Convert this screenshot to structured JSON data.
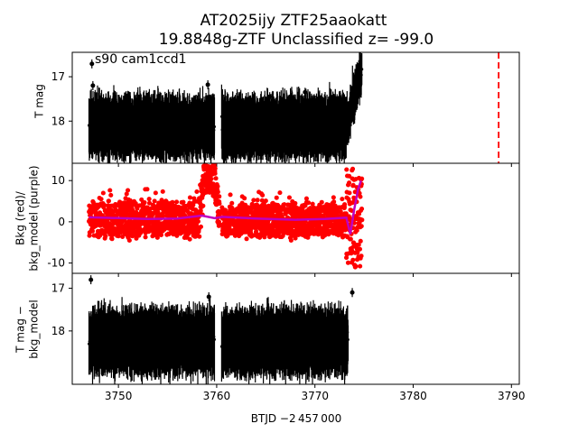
{
  "chart_data": {
    "type": "scatter",
    "title_line1": "AT2025ijy  ZTF25aaokatt",
    "title_line2": "19.8848g-ZTF Unclassified z= -99.0",
    "annotation": "s90 cam1ccd1",
    "xlabel": "BTJD −2 457 000",
    "xlim": [
      3745.3,
      3790.8
    ],
    "xticks": [
      3750,
      3760,
      3770,
      3780,
      3790
    ],
    "marker_line_x": 3788.7,
    "colors": {
      "data": "#000000",
      "bkg": "#ff0000",
      "model": "#bf00bf",
      "marker_line": "#ff0000"
    },
    "panels": [
      {
        "id": "top",
        "ylabel": [
          "T mag"
        ],
        "ylim": [
          18.95,
          16.45
        ],
        "yticks": [
          17,
          18
        ],
        "gaps": [
          [
            3759.8,
            3760.5
          ]
        ],
        "segments": [
          {
            "x": [
              3747.0,
              3759.8
            ],
            "lo": 17.45,
            "hi": 18.8,
            "noise": 0.28,
            "bumps": []
          },
          {
            "x": [
              3760.5,
              3773.2
            ],
            "lo": 17.45,
            "hi": 18.8,
            "noise": 0.28,
            "bumps": []
          },
          {
            "x": [
              3773.2,
              3774.8
            ],
            "lo": 16.6,
            "hi": 18.4,
            "noise": 0.3,
            "rise": [
              18.1,
              16.8
            ]
          }
        ],
        "outliers": [
          [
            3747.3,
            16.71
          ],
          [
            3747.4,
            17.2
          ],
          [
            3759.1,
            17.18
          ],
          [
            3769.0,
            17.35
          ],
          [
            3765.4,
            17.45
          ]
        ]
      },
      {
        "id": "middle",
        "ylabel": [
          "Bkg (red)/",
          "bkg_model (purple)"
        ],
        "ylim": [
          -12.5,
          14.2
        ],
        "yticks": [
          -10,
          0,
          10
        ],
        "bkg_segments": [
          {
            "x": [
              3747.0,
              3758.2
            ],
            "center": 0.5,
            "spread": 4.8
          },
          {
            "x": [
              3758.2,
              3760.3
            ],
            "center": 7.0,
            "spread": 6.5,
            "bump": true
          },
          {
            "x": [
              3760.5,
              3773.2
            ],
            "center": 0.3,
            "spread": 4.6
          },
          {
            "x": [
              3773.2,
              3774.8
            ],
            "center": 2.0,
            "spread": 11.0,
            "wild": true
          }
        ],
        "model_level": 1.0,
        "model_curve": [
          [
            3747.0,
            1.1
          ],
          [
            3750.0,
            0.9
          ],
          [
            3753.0,
            0.7
          ],
          [
            3756.0,
            0.8
          ],
          [
            3758.5,
            1.5
          ],
          [
            3759.8,
            0.9
          ],
          [
            3760.6,
            1.2
          ],
          [
            3764.0,
            0.8
          ],
          [
            3768.0,
            0.5
          ],
          [
            3771.0,
            0.7
          ],
          [
            3773.2,
            1.0
          ],
          [
            3773.6,
            -3.0
          ],
          [
            3774.0,
            3.0
          ],
          [
            3774.4,
            8.0
          ],
          [
            3774.7,
            10.0
          ]
        ]
      },
      {
        "id": "bottom",
        "ylabel": [
          "T mag −",
          "bkg_model"
        ],
        "ylim": [
          19.25,
          16.65
        ],
        "yticks": [
          17,
          18
        ],
        "segments": [
          {
            "x": [
              3747.0,
              3759.8
            ],
            "lo": 17.5,
            "hi": 19.0,
            "noise": 0.3
          },
          {
            "x": [
              3760.5,
              3773.4
            ],
            "lo": 17.5,
            "hi": 19.0,
            "noise": 0.3
          }
        ],
        "outliers": [
          [
            3747.2,
            16.8
          ],
          [
            3759.2,
            17.2
          ],
          [
            3773.8,
            17.1
          ],
          [
            3762.0,
            17.55
          ]
        ]
      }
    ]
  }
}
